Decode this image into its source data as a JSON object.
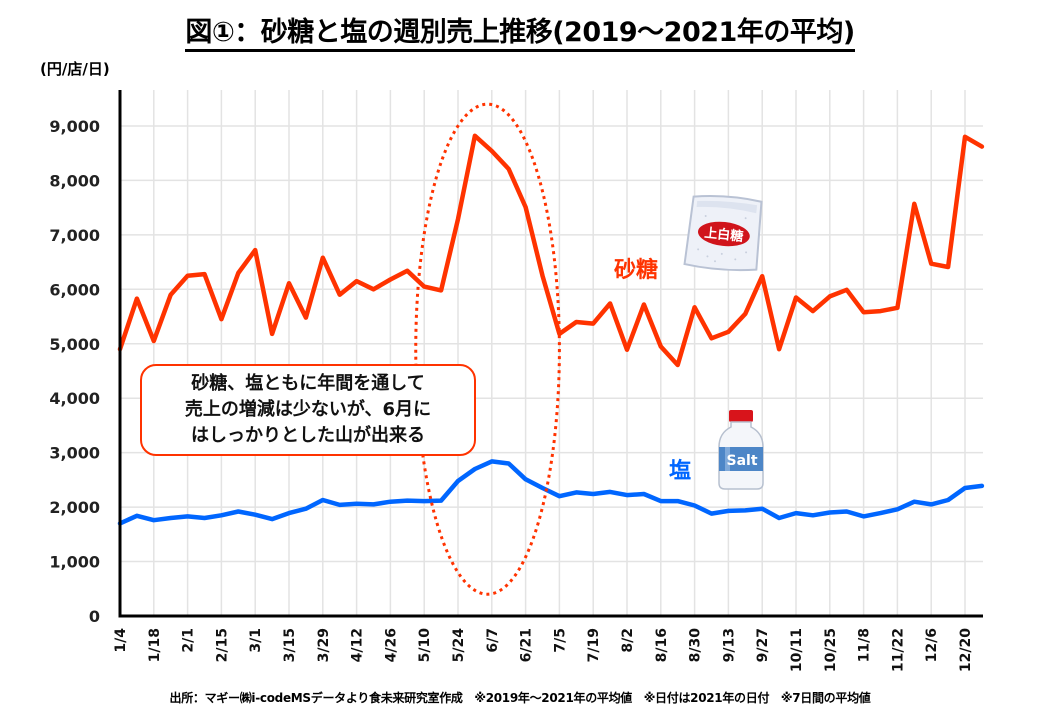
{
  "title": "図①：砂糖と塩の週別売上推移(2019～2021年の平均)",
  "unit": "(円/店/日)",
  "source": "出所：マギー㈱i-codeMSデータより食未来研究室作成　※2019年～2021年の平均値　※日付は2021年の日付　※7日間の平均値",
  "annotation": {
    "lines": [
      "砂糖、塩ともに年間を通して",
      "売上の増減は少ないが、6月に",
      "はしっかりとした山が出来る"
    ]
  },
  "icons": {
    "sugar": {
      "name": "sugar-bag-icon",
      "text": "上白糖"
    },
    "salt": {
      "name": "salt-bottle-icon",
      "text": "Salt"
    }
  },
  "colors": {
    "sugar": "#ff3300",
    "salt": "#0066ff",
    "grid": "#e3e3e3",
    "axis": "#000000"
  },
  "chart_data": {
    "type": "line",
    "title": "図①：砂糖と塩の週別売上推移(2019～2021年の平均)",
    "xlabel": "",
    "ylabel": "(円/店/日)",
    "ylim": [
      0,
      9500
    ],
    "yticks": [
      0,
      1000,
      2000,
      3000,
      4000,
      5000,
      6000,
      7000,
      8000,
      9000
    ],
    "ytick_labels": [
      "0",
      "1,000",
      "2,000",
      "3,000",
      "4,000",
      "5,000",
      "6,000",
      "7,000",
      "8,000",
      "9,000"
    ],
    "xtick_labels": [
      "1/4",
      "1/18",
      "2/1",
      "2/15",
      "3/1",
      "3/15",
      "3/29",
      "4/12",
      "4/26",
      "5/10",
      "5/24",
      "6/7",
      "6/21",
      "7/5",
      "7/19",
      "8/2",
      "8/16",
      "8/30",
      "9/13",
      "9/27",
      "10/11",
      "10/25",
      "11/8",
      "11/22",
      "12/6",
      "12/20"
    ],
    "x_weeks": 52,
    "grid": true,
    "highlight": {
      "type": "dotted-ellipse",
      "from_week_index": 17.5,
      "to_week_index": 26,
      "y_range": [
        400,
        9400
      ]
    },
    "series": [
      {
        "name": "砂糖",
        "color": "#ff3300",
        "values": [
          4900,
          5830,
          5050,
          5900,
          6250,
          6280,
          5450,
          6300,
          6720,
          5180,
          6110,
          5480,
          6580,
          5900,
          6150,
          6000,
          6180,
          6340,
          6050,
          5980,
          7290,
          8820,
          8540,
          8210,
          7510,
          6250,
          5180,
          5400,
          5370,
          5740,
          4890,
          5720,
          4950,
          4610,
          5670,
          5100,
          5220,
          5550,
          6240,
          4900,
          5850,
          5600,
          5870,
          5990,
          5580,
          5600,
          5660,
          7570,
          6470,
          6410,
          8800,
          8620
        ]
      },
      {
        "name": "塩",
        "color": "#0066ff",
        "values": [
          1700,
          1840,
          1760,
          1800,
          1830,
          1800,
          1850,
          1920,
          1860,
          1780,
          1890,
          1970,
          2130,
          2040,
          2060,
          2050,
          2100,
          2120,
          2110,
          2120,
          2480,
          2700,
          2840,
          2800,
          2510,
          2350,
          2200,
          2270,
          2240,
          2280,
          2220,
          2240,
          2110,
          2110,
          2030,
          1880,
          1930,
          1940,
          1970,
          1800,
          1890,
          1850,
          1900,
          1920,
          1830,
          1890,
          1960,
          2100,
          2050,
          2130,
          2350,
          2390
        ]
      }
    ]
  }
}
